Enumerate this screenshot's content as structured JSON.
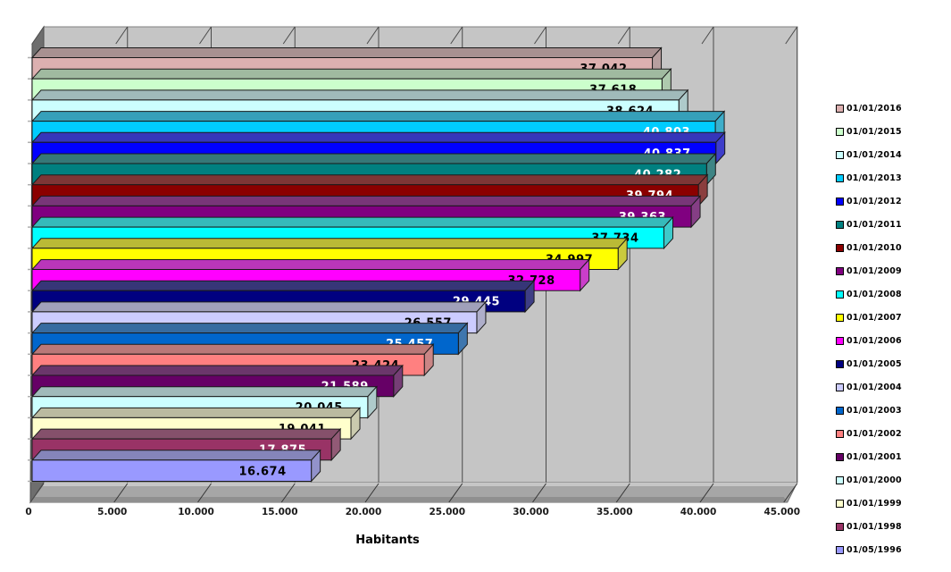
{
  "chart_data": {
    "type": "bar",
    "orientation": "horizontal",
    "style": "3d",
    "title": "",
    "xlabel": "Habitants",
    "ylabel": "",
    "xlim": [
      0,
      45000
    ],
    "x_tick_step": 5000,
    "x_ticks": [
      "0",
      "5.000",
      "10.000",
      "15.000",
      "20.000",
      "25.000",
      "30.000",
      "35.000",
      "40.000",
      "45.000"
    ],
    "grid": "vertical",
    "legend_position": "right",
    "background_color": "#FFFFFF",
    "wall_color": "#C5C5C5",
    "ceiling_color": "#BDBDBD",
    "floor_color": "#A6A6A6",
    "floor_front_color": "#8F8F8F",
    "floor_back_highlight": "#C6C6C6",
    "side_wall_color": "#6E6E6E",
    "gridline_color": "#4A4A4A",
    "series": [
      {
        "name": "01/01/2016",
        "value": 37042,
        "label": "37.042",
        "color": "#DCB0B0",
        "label_color": "#000000"
      },
      {
        "name": "01/01/2015",
        "value": 37618,
        "label": "37.618",
        "color": "#CCFFCC",
        "label_color": "#000000"
      },
      {
        "name": "01/01/2014",
        "value": 38624,
        "label": "38.624",
        "color": "#CCFFFF",
        "label_color": "#000000"
      },
      {
        "name": "01/01/2013",
        "value": 40803,
        "label": "40.803",
        "color": "#00CCFF",
        "label_color": "#FFFFFF"
      },
      {
        "name": "01/01/2012",
        "value": 40837,
        "label": "40.837",
        "color": "#0000FF",
        "label_color": "#FFFFFF"
      },
      {
        "name": "01/01/2011",
        "value": 40282,
        "label": "40.282",
        "color": "#008080",
        "label_color": "#FFFFFF"
      },
      {
        "name": "01/01/2010",
        "value": 39794,
        "label": "39.794",
        "color": "#8B0000",
        "label_color": "#FFFFFF"
      },
      {
        "name": "01/01/2009",
        "value": 39363,
        "label": "39.363",
        "color": "#800080",
        "label_color": "#FFFFFF"
      },
      {
        "name": "01/01/2008",
        "value": 37734,
        "label": "37.734",
        "color": "#00FFFF",
        "label_color": "#000000"
      },
      {
        "name": "01/01/2007",
        "value": 34997,
        "label": "34.997",
        "color": "#FFFF00",
        "label_color": "#000000"
      },
      {
        "name": "01/01/2006",
        "value": 32728,
        "label": "32.728",
        "color": "#FF00FF",
        "label_color": "#000000"
      },
      {
        "name": "01/01/2005",
        "value": 29445,
        "label": "29.445",
        "color": "#000080",
        "label_color": "#FFFFFF"
      },
      {
        "name": "01/01/2004",
        "value": 26557,
        "label": "26.557",
        "color": "#CCCCFF",
        "label_color": "#000000"
      },
      {
        "name": "01/01/2003",
        "value": 25457,
        "label": "25.457",
        "color": "#0066CC",
        "label_color": "#FFFFFF"
      },
      {
        "name": "01/01/2002",
        "value": 23424,
        "label": "23.424",
        "color": "#FF8080",
        "label_color": "#000000"
      },
      {
        "name": "01/01/2001",
        "value": 21589,
        "label": "21.589",
        "color": "#660066",
        "label_color": "#FFFFFF"
      },
      {
        "name": "01/01/2000",
        "value": 20045,
        "label": "20.045",
        "color": "#CCFFFF",
        "label_color": "#000000"
      },
      {
        "name": "01/01/1999",
        "value": 19041,
        "label": "19.041",
        "color": "#FFFFCC",
        "label_color": "#000000"
      },
      {
        "name": "01/01/1998",
        "value": 17875,
        "label": "17.875",
        "color": "#993366",
        "label_color": "#FFFFFF"
      },
      {
        "name": "01/05/1996",
        "value": 16674,
        "label": "16.674",
        "color": "#9999FF",
        "label_color": "#000000"
      }
    ]
  }
}
